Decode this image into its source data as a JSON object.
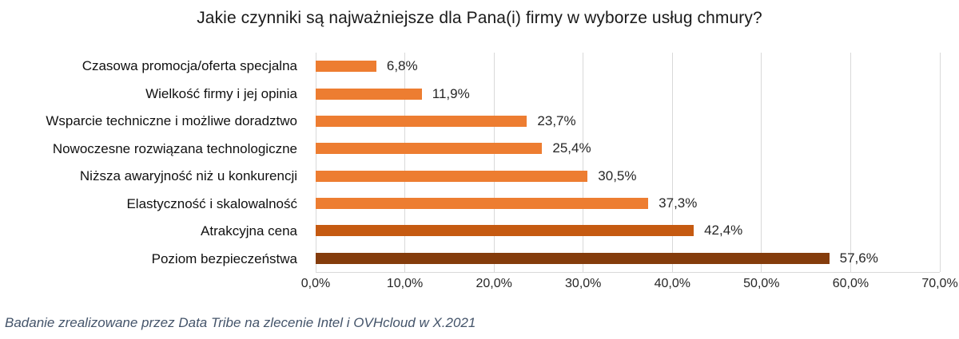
{
  "title": "Jakie czynniki są najważniejsze dla Pana(i) firmy w wyborze usług chmury?",
  "footer": "Badanie zrealizowane przez Data Tribe na zlecenie Intel i OVHcloud w X.2021",
  "colors": {
    "bar_default": "#ED7D31",
    "bar_dark": "#C55A11",
    "bar_darkest": "#843C0C",
    "gridline": "#D9D9D9",
    "axis_text": "#262626",
    "footer_text": "#44546A"
  },
  "chart_data": {
    "type": "bar",
    "orientation": "horizontal",
    "title": "Jakie czynniki są najważniejsze dla Pana(i) firmy w wyborze usług chmury?",
    "categories": [
      "Czasowa promocja/oferta specjalna",
      "Wielkość firmy i jej opinia",
      "Wsparcie techniczne i możliwe doradztwo",
      "Nowoczesne rozwiązana technologiczne",
      "Niższa awaryjność niż u konkurencji",
      "Elastyczność i skalowalność",
      "Atrakcyjna cena",
      "Poziom bezpieczeństwa"
    ],
    "values": [
      6.8,
      11.9,
      23.7,
      25.4,
      30.5,
      37.3,
      42.4,
      57.6
    ],
    "value_labels": [
      "6,8%",
      "11,9%",
      "23,7%",
      "25,4%",
      "30,5%",
      "37,3%",
      "42,4%",
      "57,6%"
    ],
    "bar_colors": [
      "#ED7D31",
      "#ED7D31",
      "#ED7D31",
      "#ED7D31",
      "#ED7D31",
      "#ED7D31",
      "#C55A11",
      "#843C0C"
    ],
    "xlabel": "",
    "ylabel": "",
    "xlim": [
      0,
      70
    ],
    "x_ticks": [
      0,
      10,
      20,
      30,
      40,
      50,
      60,
      70
    ],
    "x_tick_labels": [
      "0,0%",
      "10,0%",
      "20,0%",
      "30,0%",
      "40,0%",
      "50,0%",
      "60,0%",
      "70,0%"
    ],
    "grid": true,
    "legend": false,
    "annotation": "Badanie zrealizowane przez Data Tribe na zlecenie Intel i OVHcloud w X.2021"
  }
}
